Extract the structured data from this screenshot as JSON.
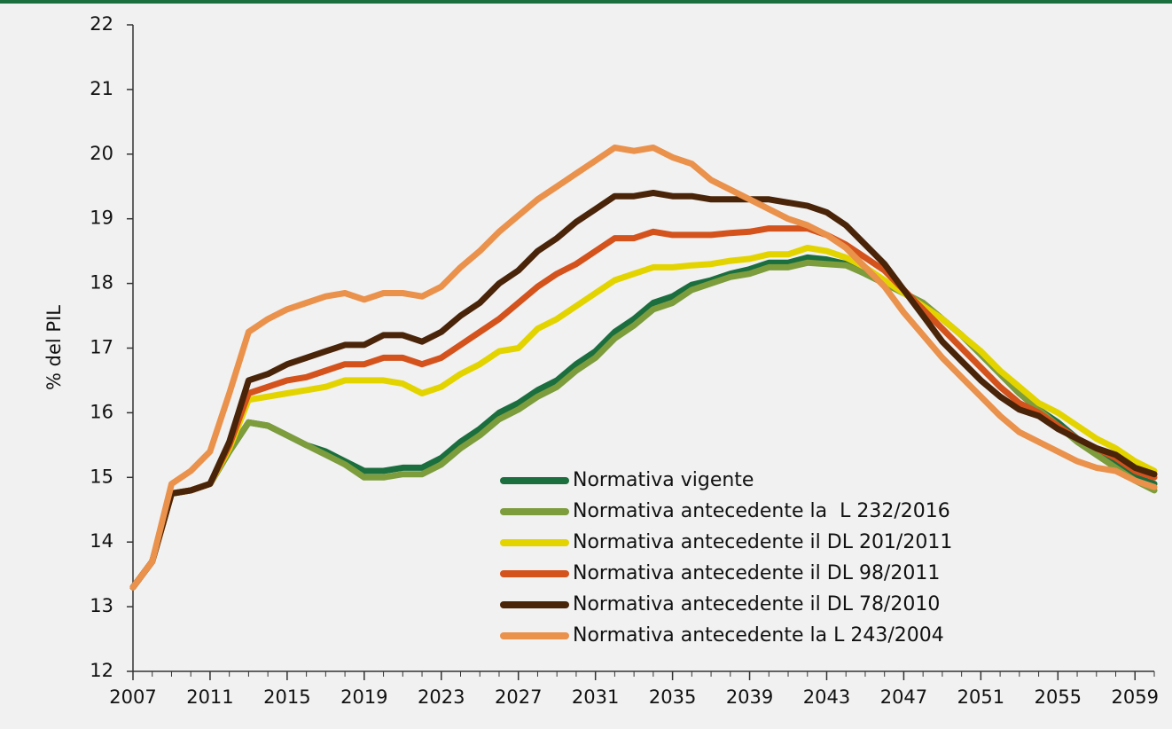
{
  "chart_data": {
    "type": "line",
    "ylabel": "% del PIL",
    "x": [
      2007,
      2008,
      2009,
      2010,
      2011,
      2012,
      2013,
      2014,
      2015,
      2016,
      2017,
      2018,
      2019,
      2020,
      2021,
      2022,
      2023,
      2024,
      2025,
      2026,
      2027,
      2028,
      2029,
      2030,
      2031,
      2032,
      2033,
      2034,
      2035,
      2036,
      2037,
      2038,
      2039,
      2040,
      2041,
      2042,
      2043,
      2044,
      2045,
      2046,
      2047,
      2048,
      2049,
      2050,
      2051,
      2052,
      2053,
      2054,
      2055,
      2056,
      2057,
      2058,
      2059,
      2060
    ],
    "xlim": [
      2007,
      2060
    ],
    "xticks": [
      2007,
      2011,
      2015,
      2019,
      2023,
      2027,
      2031,
      2035,
      2039,
      2043,
      2047,
      2051,
      2055,
      2059
    ],
    "ylim": [
      12,
      22
    ],
    "yticks": [
      12,
      13,
      14,
      15,
      16,
      17,
      18,
      19,
      20,
      21,
      22
    ],
    "grid": false,
    "legend": "lower center",
    "series": [
      {
        "name": "Normativa vigente",
        "color": "#1b6e3e",
        "values": [
          13.3,
          13.7,
          14.75,
          14.8,
          14.9,
          15.4,
          15.85,
          15.8,
          15.65,
          15.5,
          15.4,
          15.25,
          15.1,
          15.1,
          15.15,
          15.15,
          15.3,
          15.55,
          15.75,
          16.0,
          16.15,
          16.35,
          16.5,
          16.75,
          16.95,
          17.25,
          17.45,
          17.7,
          17.8,
          17.98,
          18.05,
          18.15,
          18.22,
          18.32,
          18.32,
          18.4,
          18.37,
          18.3,
          18.15,
          18.0,
          17.85,
          17.7,
          17.45,
          17.2,
          16.9,
          16.6,
          16.3,
          16.05,
          15.85,
          15.6,
          15.4,
          15.2,
          15.0,
          14.9
        ]
      },
      {
        "name": "Normativa antecedente la  L 232/2016",
        "color": "#7d9c3c",
        "values": [
          13.3,
          13.7,
          14.75,
          14.8,
          14.9,
          15.4,
          15.85,
          15.8,
          15.65,
          15.5,
          15.35,
          15.2,
          15.0,
          15.0,
          15.05,
          15.05,
          15.2,
          15.45,
          15.65,
          15.9,
          16.05,
          16.25,
          16.4,
          16.65,
          16.85,
          17.15,
          17.35,
          17.6,
          17.7,
          17.9,
          18.0,
          18.1,
          18.15,
          18.25,
          18.25,
          18.32,
          18.3,
          18.28,
          18.15,
          18.0,
          17.85,
          17.7,
          17.45,
          17.2,
          16.9,
          16.6,
          16.3,
          16.05,
          15.8,
          15.55,
          15.35,
          15.15,
          14.95,
          14.8
        ]
      },
      {
        "name": "Normativa antecedente il DL 201/2011",
        "color": "#e3d400",
        "values": [
          13.3,
          13.7,
          14.75,
          14.8,
          14.9,
          15.45,
          16.2,
          16.25,
          16.3,
          16.35,
          16.4,
          16.5,
          16.5,
          16.5,
          16.45,
          16.3,
          16.4,
          16.6,
          16.75,
          16.95,
          17.0,
          17.3,
          17.45,
          17.65,
          17.85,
          18.05,
          18.15,
          18.25,
          18.25,
          18.28,
          18.3,
          18.35,
          18.38,
          18.45,
          18.45,
          18.55,
          18.5,
          18.4,
          18.25,
          18.05,
          17.85,
          17.65,
          17.45,
          17.2,
          16.95,
          16.65,
          16.4,
          16.15,
          16.0,
          15.8,
          15.6,
          15.45,
          15.25,
          15.1
        ]
      },
      {
        "name": "Normativa antecedente il DL 98/2011",
        "color": "#d4521c",
        "values": [
          13.3,
          13.7,
          14.75,
          14.8,
          14.9,
          15.5,
          16.3,
          16.4,
          16.5,
          16.55,
          16.65,
          16.75,
          16.75,
          16.85,
          16.85,
          16.75,
          16.85,
          17.05,
          17.25,
          17.45,
          17.7,
          17.95,
          18.15,
          18.3,
          18.5,
          18.7,
          18.7,
          18.8,
          18.75,
          18.75,
          18.75,
          18.78,
          18.8,
          18.85,
          18.85,
          18.85,
          18.75,
          18.6,
          18.4,
          18.2,
          17.9,
          17.6,
          17.3,
          17.0,
          16.7,
          16.4,
          16.15,
          16.0,
          15.8,
          15.6,
          15.45,
          15.3,
          15.1,
          15.0
        ]
      },
      {
        "name": "Normativa antecedente il DL 78/2010",
        "color": "#4a2409",
        "values": [
          13.3,
          13.7,
          14.75,
          14.8,
          14.9,
          15.55,
          16.5,
          16.6,
          16.75,
          16.85,
          16.95,
          17.05,
          17.05,
          17.2,
          17.2,
          17.1,
          17.25,
          17.5,
          17.7,
          18.0,
          18.2,
          18.5,
          18.7,
          18.95,
          19.15,
          19.35,
          19.35,
          19.4,
          19.35,
          19.35,
          19.3,
          19.3,
          19.3,
          19.3,
          19.25,
          19.2,
          19.1,
          18.9,
          18.6,
          18.3,
          17.9,
          17.5,
          17.1,
          16.8,
          16.5,
          16.25,
          16.05,
          15.95,
          15.75,
          15.6,
          15.45,
          15.35,
          15.15,
          15.05
        ]
      },
      {
        "name": "Normativa antecedente la L 243/2004",
        "color": "#ea914c",
        "values": [
          13.3,
          13.7,
          14.9,
          15.1,
          15.4,
          16.3,
          17.25,
          17.45,
          17.6,
          17.7,
          17.8,
          17.85,
          17.75,
          17.85,
          17.85,
          17.8,
          17.95,
          18.25,
          18.5,
          18.8,
          19.05,
          19.3,
          19.5,
          19.7,
          19.9,
          20.1,
          20.05,
          20.1,
          19.95,
          19.85,
          19.6,
          19.45,
          19.3,
          19.15,
          19.0,
          18.9,
          18.75,
          18.55,
          18.25,
          17.95,
          17.55,
          17.2,
          16.85,
          16.55,
          16.25,
          15.95,
          15.7,
          15.55,
          15.4,
          15.25,
          15.15,
          15.1,
          14.95,
          14.85
        ]
      }
    ]
  }
}
